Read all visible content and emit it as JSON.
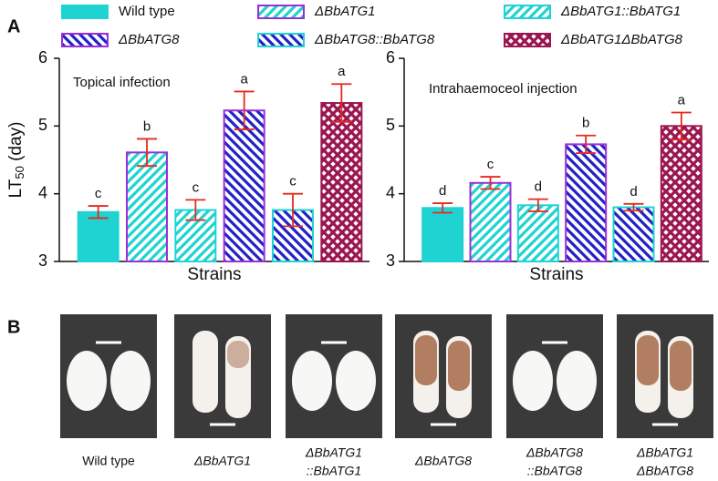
{
  "panel_labels": [
    "A",
    "B"
  ],
  "legend": [
    {
      "name": "Wild type",
      "border": "#1fd3d3",
      "fill": "#1fd3d3",
      "pattern": "solid"
    },
    {
      "name": "ΔBbATG1",
      "border": "#9a2fd8",
      "fill": "#1fd3d3",
      "pattern": "fwd"
    },
    {
      "name": "ΔBbATG1::BbATG1",
      "border": "#1fd3d3",
      "fill": "#1fd3d3",
      "pattern": "fwd"
    },
    {
      "name": "ΔBbATG8",
      "border": "#9a2fd8",
      "fill": "#2222c8",
      "pattern": "back"
    },
    {
      "name": "ΔBbATG8::BbATG8",
      "border": "#1fd3d3",
      "fill": "#2222c8",
      "pattern": "back"
    },
    {
      "name": "ΔBbATG1ΔBbATG8",
      "border": "#9b1650",
      "fill": "#9b1650",
      "pattern": "cross"
    }
  ],
  "chart_data": [
    {
      "type": "bar",
      "annotation": "Topical infection",
      "ylabel": {
        "main": "LT",
        "sub": "50",
        "unit": " (day)"
      },
      "xlabel": "Strains",
      "values": [
        3.73,
        4.61,
        3.76,
        5.23,
        3.76,
        5.34
      ],
      "errors": [
        0.09,
        0.2,
        0.15,
        0.28,
        0.24,
        0.28
      ],
      "letters": [
        "c",
        "b",
        "c",
        "a",
        "c",
        "a"
      ],
      "ylim": [
        3,
        6
      ],
      "yticks": [
        3,
        4,
        5,
        6
      ],
      "error_color": "#e62a1e"
    },
    {
      "type": "bar",
      "annotation": "Intrahaemoceol injection",
      "xlabel": "Strains",
      "values": [
        3.79,
        4.16,
        3.83,
        4.73,
        3.8,
        5.0
      ],
      "errors": [
        0.07,
        0.09,
        0.09,
        0.13,
        0.05,
        0.2
      ],
      "letters": [
        "d",
        "c",
        "d",
        "b",
        "d",
        "a"
      ],
      "ylim": [
        3,
        6
      ],
      "yticks": [
        3,
        4,
        5,
        6
      ],
      "error_color": "#e62a1e"
    }
  ],
  "photos": [
    {
      "label": [
        "Wild type"
      ]
    },
    {
      "label": [
        "ΔBbATG1"
      ]
    },
    {
      "label": [
        "ΔBbATG1",
        "::BbATG1"
      ]
    },
    {
      "label": [
        "ΔBbATG8"
      ]
    },
    {
      "label": [
        "ΔBbATG8",
        "::BbATG8"
      ]
    },
    {
      "label": [
        "ΔBbATG1",
        "ΔBbATG8"
      ]
    }
  ]
}
